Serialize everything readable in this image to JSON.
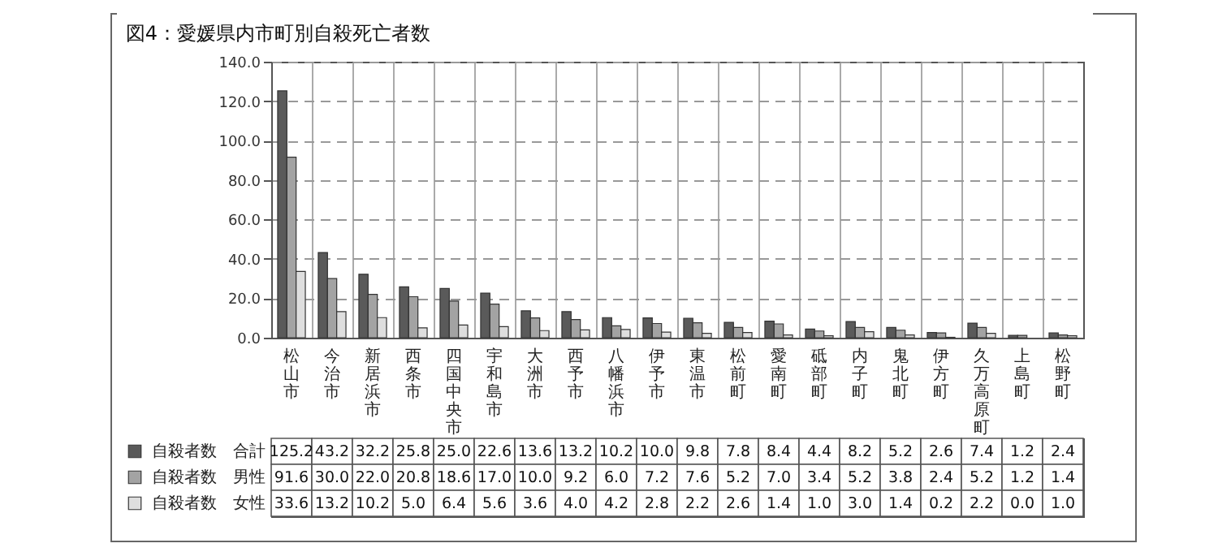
{
  "chart_data": {
    "type": "bar",
    "title": "図4：愛媛県内市町別自殺死亡者数",
    "categories": [
      "松山市",
      "今治市",
      "新居浜市",
      "西条市",
      "四国中央市",
      "宇和島市",
      "大洲市",
      "西予市",
      "八幡浜市",
      "伊予市",
      "東温市",
      "松前町",
      "愛南町",
      "砥部町",
      "内子町",
      "鬼北町",
      "伊方町",
      "久万高原町",
      "上島町",
      "松野町"
    ],
    "series": [
      {
        "name": "自殺者数　合計",
        "color": "#5a5a5a",
        "values": [
          125.2,
          43.2,
          32.2,
          25.8,
          25.0,
          22.6,
          13.6,
          13.2,
          10.2,
          10.0,
          9.8,
          7.8,
          8.4,
          4.4,
          8.2,
          5.2,
          2.6,
          7.4,
          1.2,
          2.4
        ],
        "value_labels": [
          "125.2",
          "43.2",
          "32.2",
          "25.8",
          "25.0",
          "22.6",
          "13.6",
          "13.2",
          "10.2",
          "10.0",
          "9.8",
          "7.8",
          "8.4",
          "4.4",
          "8.2",
          "5.2",
          "2.6",
          "7.4",
          "1.2",
          "2.4"
        ]
      },
      {
        "name": "自殺者数　男性",
        "color": "#a3a3a3",
        "values": [
          91.6,
          30.0,
          22.0,
          20.8,
          18.6,
          17.0,
          10.0,
          9.2,
          6.0,
          7.2,
          7.6,
          5.2,
          7.0,
          3.4,
          5.2,
          3.8,
          2.4,
          5.2,
          1.2,
          1.4
        ],
        "value_labels": [
          "91.6",
          "30.0",
          "22.0",
          "20.8",
          "18.6",
          "17.0",
          "10.0",
          "9.2",
          "6.0",
          "7.2",
          "7.6",
          "5.2",
          "7.0",
          "3.4",
          "5.2",
          "3.8",
          "2.4",
          "5.2",
          "1.2",
          "1.4"
        ]
      },
      {
        "name": "自殺者数　女性",
        "color": "#dedede",
        "values": [
          33.6,
          13.2,
          10.2,
          5.0,
          6.4,
          5.6,
          3.6,
          4.0,
          4.2,
          2.8,
          2.2,
          2.6,
          1.4,
          1.0,
          3.0,
          1.4,
          0.2,
          2.2,
          0.0,
          1.0
        ],
        "value_labels": [
          "33.6",
          "13.2",
          "10.2",
          "5.0",
          "6.4",
          "5.6",
          "3.6",
          "4.0",
          "4.2",
          "2.8",
          "2.2",
          "2.6",
          "1.4",
          "1.0",
          "3.0",
          "1.4",
          "0.2",
          "2.2",
          "0.0",
          "1.0"
        ]
      }
    ],
    "ylim": [
      0,
      140
    ],
    "yticks": [
      {
        "value": 0,
        "label": "0.0"
      },
      {
        "value": 20,
        "label": "20.0"
      },
      {
        "value": 40,
        "label": "40.0"
      },
      {
        "value": 60,
        "label": "60.0"
      },
      {
        "value": 80,
        "label": "80.0"
      },
      {
        "value": 100,
        "label": "100.0"
      },
      {
        "value": 120,
        "label": "120.0"
      },
      {
        "value": 140,
        "label": "140.0"
      }
    ],
    "grid": true,
    "legend": "bottom left"
  }
}
